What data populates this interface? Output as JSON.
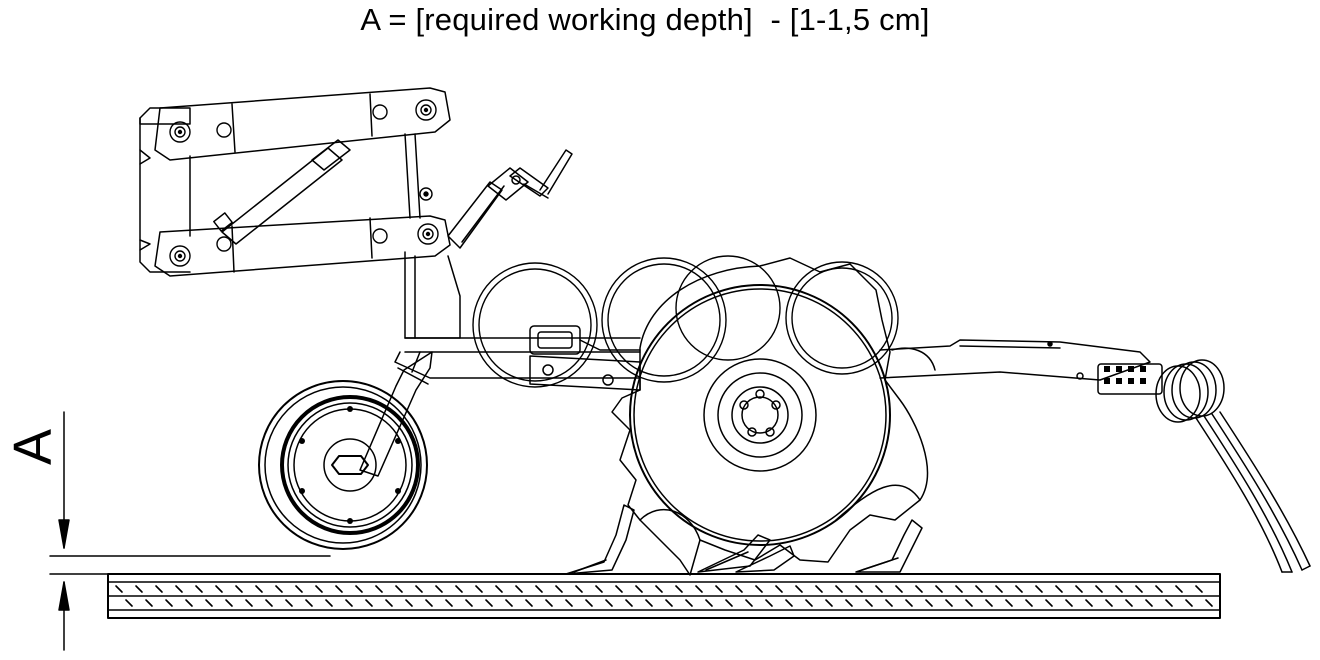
{
  "title": "A = [required working depth]  - [1-1,5 cm]",
  "dimension_label": "A"
}
